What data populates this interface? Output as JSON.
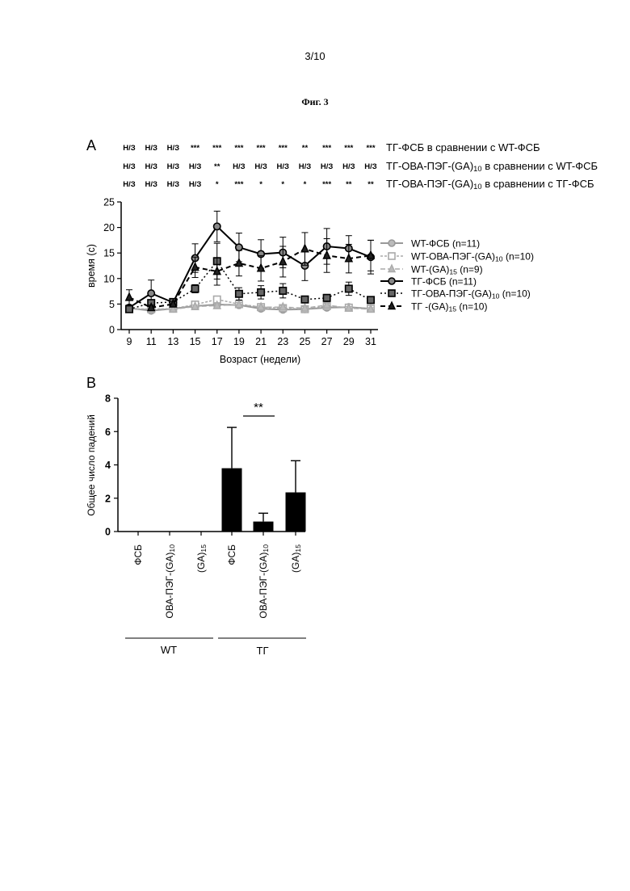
{
  "page_number": "3/10",
  "figure_title": "Фиг. 3",
  "panel_a": {
    "label": "A",
    "stat_rows": [
      {
        "label": "ТГ-ФСБ в сравнении с WT-ФСБ",
        "marks": [
          "Н/З",
          "Н/З",
          "Н/З",
          "***",
          "***",
          "***",
          "***",
          "***",
          "**",
          "***",
          "***",
          "***"
        ]
      },
      {
        "label_main": "ТГ-ОВА-ПЭГ-(GA)",
        "label_sub": "10",
        "label_end": " в сравнении с WT-ФСБ",
        "marks": [
          "Н/З",
          "Н/З",
          "Н/З",
          "Н/З",
          "**",
          "Н/З",
          "Н/З",
          "Н/З",
          "Н/З",
          "Н/З",
          "Н/З",
          "Н/З"
        ]
      },
      {
        "label_main": "ТГ-ОВА-ПЭГ-(GA)",
        "label_sub": "10",
        "label_end": " в сравнении с ТГ-ФСБ",
        "marks": [
          "Н/З",
          "Н/З",
          "Н/З",
          "Н/З",
          "*",
          "***",
          "*",
          "*",
          "*",
          "***",
          "**",
          "**"
        ]
      }
    ]
  },
  "panel_b": {
    "label": "B",
    "significance": "**",
    "group_labels": [
      "WT",
      "ТГ"
    ]
  },
  "chart_data": [
    {
      "type": "line",
      "xlabel": "Возраст (недели)",
      "ylabel": "время (с)",
      "x": [
        9,
        11,
        13,
        15,
        17,
        19,
        21,
        23,
        25,
        27,
        29,
        31
      ],
      "ylim": [
        0,
        25
      ],
      "yticks": [
        0,
        5,
        10,
        15,
        20,
        25
      ],
      "legend_position": "right",
      "series": [
        {
          "name": "WT-ФСБ (n=11)",
          "name_main": "WT-ФСБ (n=11)",
          "color": "#999999",
          "marker": "circle",
          "fill": "#bbbbbb",
          "dash": "",
          "width": 2,
          "values": [
            4.2,
            3.7,
            4.1,
            4.6,
            4.9,
            4.8,
            4.1,
            3.9,
            4.0,
            4.3,
            4.4,
            4.1
          ],
          "errors": [
            0.3,
            0.3,
            0.3,
            0.3,
            0.4,
            0.4,
            0.3,
            0.3,
            0.3,
            0.3,
            0.3,
            0.3
          ]
        },
        {
          "name": "WT-ОВА-ПЭГ-(GA)10 (n=10)",
          "name_main": "WT-ОВА-ПЭГ-(GA)",
          "name_sub": "10",
          "name_end": " (n=10)",
          "color": "#aaaaaa",
          "marker": "square",
          "fill": "#ffffff",
          "dash": "3,2",
          "width": 1.5,
          "values": [
            4.1,
            4.0,
            4.1,
            4.9,
            5.9,
            5.0,
            4.4,
            4.2,
            4.0,
            4.6,
            4.3,
            4.1
          ],
          "errors": [
            0.3,
            0.3,
            0.3,
            0.4,
            0.5,
            0.4,
            0.3,
            0.3,
            0.3,
            0.4,
            0.3,
            0.3
          ]
        },
        {
          "name": "WT-(GA)15 (n=9)",
          "name_main": "WT-(GA)",
          "name_sub": "15",
          "name_end": " (n=9)",
          "color": "#aaaaaa",
          "marker": "triangle",
          "fill": "#bbbbbb",
          "dash": "6,3",
          "width": 1.5,
          "values": [
            4.0,
            4.0,
            4.0,
            4.5,
            4.7,
            4.9,
            4.4,
            4.4,
            4.2,
            4.8,
            4.2,
            4.0
          ],
          "errors": [
            0.3,
            0.3,
            0.3,
            0.3,
            0.4,
            0.4,
            0.3,
            0.3,
            0.3,
            0.3,
            0.3,
            0.3
          ]
        },
        {
          "name": "ТГ-ФСБ (n=11)",
          "name_main": "ТГ-ФСБ (n=11)",
          "color": "#000000",
          "marker": "circle",
          "fill": "#888888",
          "dash": "",
          "width": 2,
          "values": [
            4.3,
            7.1,
            5.3,
            14.0,
            20.2,
            16.1,
            14.8,
            15.1,
            12.5,
            16.3,
            15.9,
            14.2
          ],
          "errors": [
            0.5,
            2.6,
            0.7,
            2.8,
            3.0,
            2.8,
            2.8,
            3.0,
            2.9,
            3.5,
            2.5,
            3.3
          ]
        },
        {
          "name": "ТГ-ОВА-ПЭГ-(GA)10 (n=10)",
          "name_main": "ТГ-ОВА-ПЭГ-(GA)",
          "name_sub": "10",
          "name_end": " (n=10)",
          "color": "#000000",
          "marker": "square",
          "fill": "#666666",
          "dash": "2,3",
          "width": 1.5,
          "values": [
            4.0,
            5.2,
            5.4,
            8.0,
            13.4,
            7.0,
            7.3,
            7.6,
            5.9,
            6.2,
            8.0,
            5.8
          ],
          "errors": [
            0.3,
            0.4,
            0.6,
            0.8,
            3.5,
            1.2,
            1.3,
            1.4,
            0.5,
            0.7,
            1.3,
            0.5
          ]
        },
        {
          "name": "ТГ -(GA)15 (n=10)",
          "name_main": "ТГ -(GA)",
          "name_sub": "15",
          "name_end": " (n=10)",
          "color": "#000000",
          "marker": "triangle",
          "fill": "#222222",
          "dash": "6,4",
          "width": 2,
          "values": [
            6.3,
            4.3,
            5.0,
            12.2,
            11.4,
            13.0,
            12.0,
            13.3,
            15.8,
            14.5,
            13.9,
            14.5
          ],
          "errors": [
            1.5,
            0.5,
            0.5,
            2.0,
            2.7,
            2.5,
            2.5,
            3.0,
            3.2,
            3.3,
            2.8,
            3.0
          ]
        }
      ]
    },
    {
      "type": "bar",
      "ylabel": "Общее число падений",
      "categories": [
        "ФСБ",
        "ОВА-ПЭГ-(GA)10",
        "(GA)15",
        "ФСБ",
        "ОВА-ПЭГ-(GA)10",
        "(GA)15"
      ],
      "category_parts": [
        {
          "main": "ФСБ"
        },
        {
          "main": "ОВА-ПЭГ-(GA)",
          "sub": "10"
        },
        {
          "main": "(GA)",
          "sub": "15"
        },
        {
          "main": "ФСБ"
        },
        {
          "main": "ОВА-ПЭГ-(GA)",
          "sub": "10"
        },
        {
          "main": "(GA)",
          "sub": "15"
        }
      ],
      "groups": [
        "WT",
        "WT",
        "WT",
        "ТГ",
        "ТГ",
        "ТГ"
      ],
      "values": [
        0,
        0,
        0,
        3.8,
        0.6,
        2.35
      ],
      "errors": [
        0,
        0,
        0,
        2.45,
        0.5,
        1.9
      ],
      "ylim": [
        0,
        8
      ],
      "yticks": [
        0,
        2,
        4,
        6,
        8
      ],
      "color": "#000000"
    }
  ]
}
